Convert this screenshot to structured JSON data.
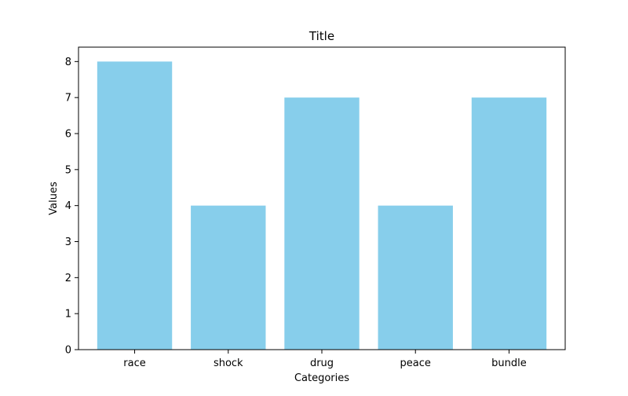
{
  "chart_data": {
    "type": "bar",
    "title": "Title",
    "xlabel": "Categories",
    "ylabel": "Values",
    "categories": [
      "race",
      "shock",
      "drug",
      "peace",
      "bundle"
    ],
    "values": [
      8,
      4,
      7,
      4,
      7
    ],
    "ylim": [
      0,
      8.4
    ],
    "yticks": [
      0,
      1,
      2,
      3,
      4,
      5,
      6,
      7,
      8
    ],
    "grid": false,
    "legend": "none",
    "bar_color": "#87ceeb"
  }
}
